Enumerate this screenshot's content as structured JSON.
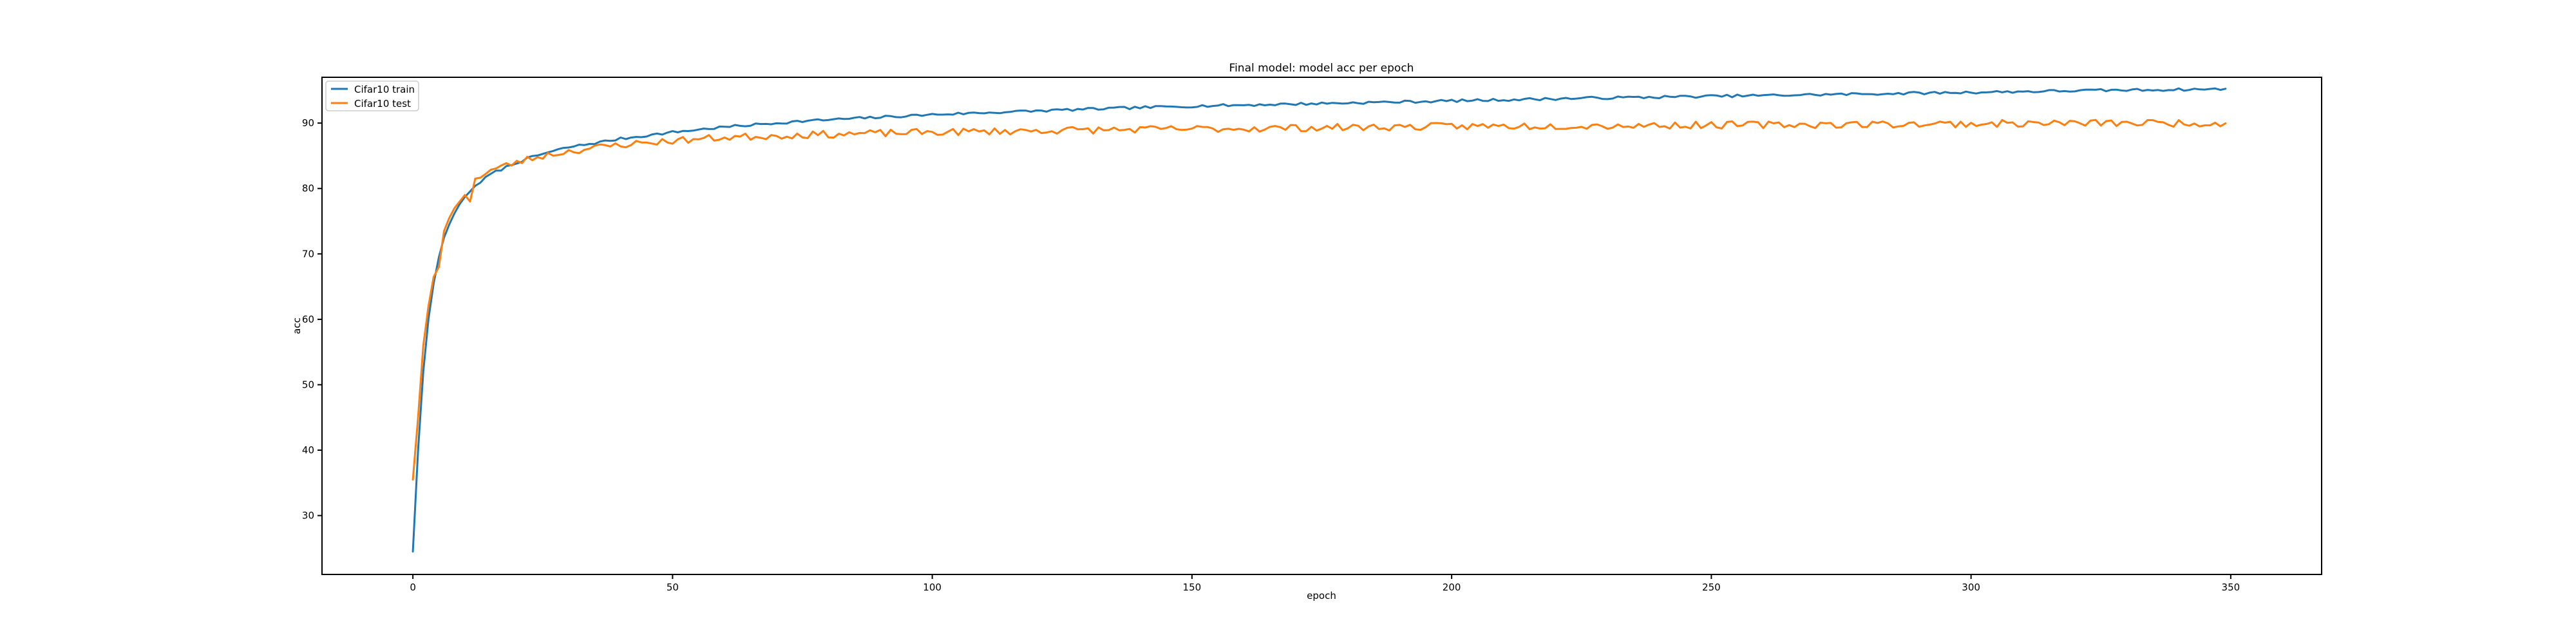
{
  "chart_data": {
    "type": "line",
    "title": "Final model: model acc per epoch",
    "xlabel": "epoch",
    "ylabel": "acc",
    "xlim": [
      -17.5,
      367.5
    ],
    "ylim": [
      21,
      97
    ],
    "xticks": [
      0,
      50,
      100,
      150,
      200,
      250,
      300,
      350
    ],
    "yticks": [
      30,
      40,
      50,
      60,
      70,
      80,
      90
    ],
    "grid": false,
    "legend": "top-left",
    "series": [
      {
        "name": "Cifar10 train",
        "color": "#1f77b4",
        "anchors": [
          [
            0,
            24.5
          ],
          [
            1,
            40
          ],
          [
            2,
            52
          ],
          [
            3,
            60
          ],
          [
            4,
            65.5
          ],
          [
            5,
            69.5
          ],
          [
            6,
            72.5
          ],
          [
            7,
            74.5
          ],
          [
            8,
            76.2
          ],
          [
            9,
            77.6
          ],
          [
            10,
            78.7
          ],
          [
            12,
            80.4
          ],
          [
            15,
            82.2
          ],
          [
            20,
            84.0
          ],
          [
            25,
            85.3
          ],
          [
            30,
            86.3
          ],
          [
            40,
            87.6
          ],
          [
            50,
            88.6
          ],
          [
            60,
            89.4
          ],
          [
            75,
            90.3
          ],
          [
            100,
            91.3
          ],
          [
            125,
            92.0
          ],
          [
            150,
            92.6
          ],
          [
            175,
            93.0
          ],
          [
            200,
            93.4
          ],
          [
            225,
            93.8
          ],
          [
            250,
            94.1
          ],
          [
            275,
            94.4
          ],
          [
            300,
            94.7
          ],
          [
            325,
            95.0
          ],
          [
            349,
            95.2
          ]
        ],
        "noise": 0.2,
        "seed": 7
      },
      {
        "name": "Cifar10 test",
        "color": "#ff7f0e",
        "anchors": [
          [
            0,
            35.5
          ],
          [
            1,
            45
          ],
          [
            2,
            56
          ],
          [
            3,
            62
          ],
          [
            4,
            66.5
          ],
          [
            5,
            68
          ],
          [
            6,
            73.5
          ],
          [
            7,
            75.5
          ],
          [
            8,
            77
          ],
          [
            9,
            78
          ],
          [
            10,
            79
          ],
          [
            11,
            78
          ],
          [
            12,
            81.5
          ],
          [
            15,
            82.8
          ],
          [
            20,
            84.0
          ],
          [
            25,
            85.0
          ],
          [
            30,
            85.7
          ],
          [
            40,
            86.7
          ],
          [
            50,
            87.3
          ],
          [
            60,
            87.8
          ],
          [
            75,
            88.2
          ],
          [
            100,
            88.6
          ],
          [
            125,
            88.9
          ],
          [
            150,
            89.1
          ],
          [
            175,
            89.3
          ],
          [
            200,
            89.5
          ],
          [
            225,
            89.6
          ],
          [
            250,
            89.7
          ],
          [
            275,
            89.8
          ],
          [
            300,
            89.9
          ],
          [
            325,
            90.0
          ],
          [
            349,
            90.0
          ]
        ],
        "noise": 0.55,
        "seed": 23
      }
    ]
  }
}
